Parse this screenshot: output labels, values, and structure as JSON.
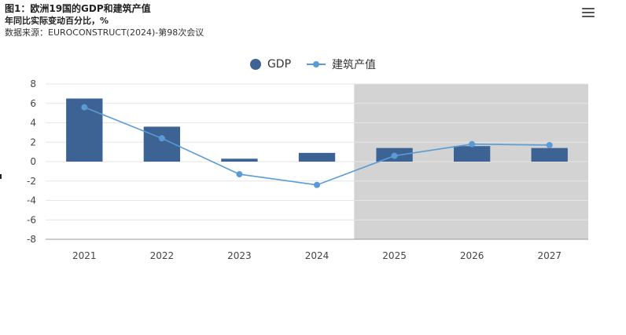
{
  "header": {
    "title": "图1：欧洲19国的GDP和建筑产值",
    "subtitle": "年同比实际变动百分比，%",
    "source": "数据来源：EUROCONSTRUCT(2024)-第98次会议"
  },
  "menu": {
    "icon": "hamburger-menu-icon"
  },
  "colors": {
    "bar": "#3d6394",
    "line": "#5b9bd5",
    "forecast_band": "#d3d3d3",
    "grid": "#e6e6e6"
  },
  "chart_data": {
    "type": "bar",
    "categories": [
      "2021",
      "2022",
      "2023",
      "2024",
      "2025",
      "2026",
      "2027"
    ],
    "series": [
      {
        "name": "GDP",
        "type": "bar",
        "values": [
          6.5,
          3.6,
          0.3,
          0.9,
          1.4,
          1.6,
          1.4
        ]
      },
      {
        "name": "建筑产值",
        "type": "line",
        "values": [
          5.6,
          2.4,
          -1.3,
          -2.4,
          0.6,
          1.8,
          1.7
        ]
      }
    ],
    "ylim": [
      -8,
      8
    ],
    "yticks": [
      "8",
      "6",
      "4",
      "2",
      "0",
      "-2",
      "-4",
      "-6",
      "-8"
    ],
    "ytick_values": [
      8,
      6,
      4,
      2,
      0,
      -2,
      -4,
      -6,
      -8
    ],
    "forecast_start_category": "2025",
    "grid": true,
    "legend": "top-center"
  }
}
